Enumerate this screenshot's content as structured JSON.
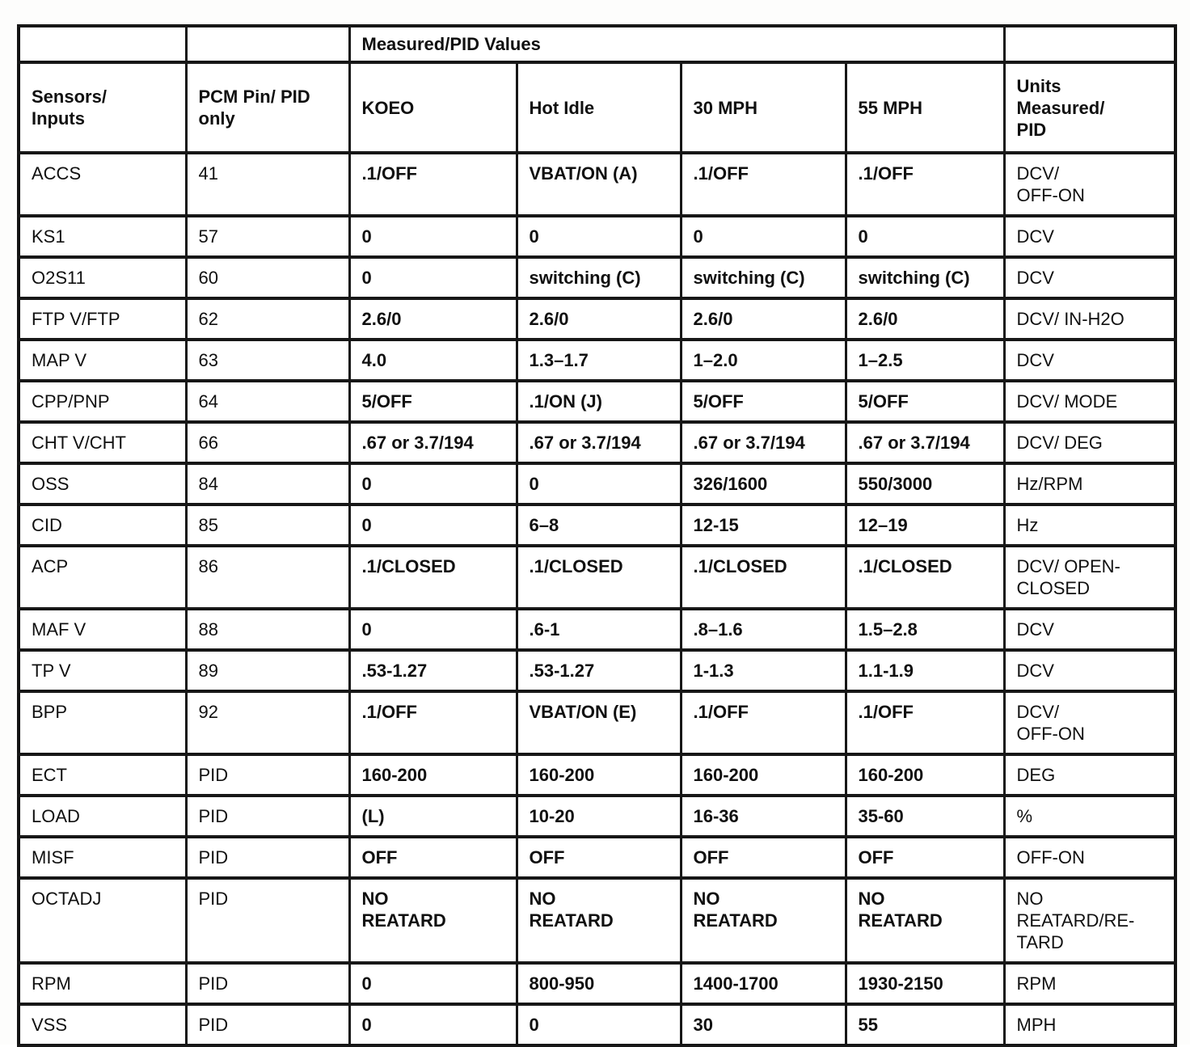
{
  "table": {
    "group_header": "Measured/PID Values",
    "headers": {
      "sensors": "Sensors/\nInputs",
      "pcm_pin": "PCM Pin/ PID\nonly",
      "koeo": "KOEO",
      "hot_idle": "Hot Idle",
      "mph30": "30 MPH",
      "mph55": "55 MPH",
      "units": "Units\nMeasured/\nPID"
    },
    "rows": [
      {
        "sensor": "ACCS",
        "pin": "41",
        "koeo": ".1/OFF",
        "hot_idle": "VBAT/ON (A)",
        "mph30": ".1/OFF",
        "mph55": ".1/OFF",
        "units": "DCV/\nOFF-ON"
      },
      {
        "sensor": "KS1",
        "pin": "57",
        "koeo": "0",
        "hot_idle": "0",
        "mph30": "0",
        "mph55": "0",
        "units": "DCV"
      },
      {
        "sensor": "O2S11",
        "pin": "60",
        "koeo": "0",
        "hot_idle": "switching (C)",
        "mph30": "switching (C)",
        "mph55": "switching (C)",
        "units": "DCV"
      },
      {
        "sensor": "FTP V/FTP",
        "pin": "62",
        "koeo": "2.6/0",
        "hot_idle": "2.6/0",
        "mph30": "2.6/0",
        "mph55": "2.6/0",
        "units": "DCV/ IN-H2O"
      },
      {
        "sensor": "MAP V",
        "pin": "63",
        "koeo": "4.0",
        "hot_idle": "1.3–1.7",
        "mph30": "1–2.0",
        "mph55": "1–2.5",
        "units": "DCV"
      },
      {
        "sensor": "CPP/PNP",
        "pin": "64",
        "koeo": "5/OFF",
        "hot_idle": ".1/ON (J)",
        "mph30": "5/OFF",
        "mph55": "5/OFF",
        "units": "DCV/ MODE"
      },
      {
        "sensor": "CHT V/CHT",
        "pin": "66",
        "koeo": ".67 or 3.7/194",
        "hot_idle": ".67 or 3.7/194",
        "mph30": ".67 or 3.7/194",
        "mph55": ".67 or 3.7/194",
        "units": "DCV/ DEG"
      },
      {
        "sensor": "OSS",
        "pin": "84",
        "koeo": "0",
        "hot_idle": "0",
        "mph30": "326/1600",
        "mph55": "550/3000",
        "units": "Hz/RPM"
      },
      {
        "sensor": "CID",
        "pin": "85",
        "koeo": "0",
        "hot_idle": "6–8",
        "mph30": "12-15",
        "mph55": "12–19",
        "units": "Hz"
      },
      {
        "sensor": "ACP",
        "pin": "86",
        "koeo": ".1/CLOSED",
        "hot_idle": ".1/CLOSED",
        "mph30": ".1/CLOSED",
        "mph55": ".1/CLOSED",
        "units": "DCV/ OPEN-\nCLOSED"
      },
      {
        "sensor": "MAF V",
        "pin": "88",
        "koeo": "0",
        "hot_idle": ".6-1",
        "mph30": ".8–1.6",
        "mph55": "1.5–2.8",
        "units": "DCV"
      },
      {
        "sensor": "TP V",
        "pin": "89",
        "koeo": ".53-1.27",
        "hot_idle": ".53-1.27",
        "mph30": "1-1.3",
        "mph55": "1.1-1.9",
        "units": "DCV"
      },
      {
        "sensor": "BPP",
        "pin": "92",
        "koeo": ".1/OFF",
        "hot_idle": "VBAT/ON (E)",
        "mph30": ".1/OFF",
        "mph55": ".1/OFF",
        "units": "DCV/\nOFF-ON"
      },
      {
        "sensor": "ECT",
        "pin": "PID",
        "koeo": "160-200",
        "hot_idle": "160-200",
        "mph30": "160-200",
        "mph55": "160-200",
        "units": "DEG"
      },
      {
        "sensor": "LOAD",
        "pin": "PID",
        "koeo": "(L)",
        "hot_idle": "10-20",
        "mph30": "16-36",
        "mph55": "35-60",
        "units": "%"
      },
      {
        "sensor": "MISF",
        "pin": "PID",
        "koeo": "OFF",
        "hot_idle": "OFF",
        "mph30": "OFF",
        "mph55": "OFF",
        "units": "OFF-ON"
      },
      {
        "sensor": "OCTADJ",
        "pin": "PID",
        "koeo": "NO\nREATARD",
        "hot_idle": "NO\nREATARD",
        "mph30": "NO\nREATARD",
        "mph55": "NO\nREATARD",
        "units": "NO\nREATARD/RE-\nTARD"
      },
      {
        "sensor": "RPM",
        "pin": "PID",
        "koeo": "0",
        "hot_idle": "800-950",
        "mph30": "1400-1700",
        "mph55": "1930-2150",
        "units": "RPM"
      },
      {
        "sensor": "VSS",
        "pin": "PID",
        "koeo": "0",
        "hot_idle": "0",
        "mph30": "30",
        "mph55": "55",
        "units": "MPH"
      }
    ]
  }
}
